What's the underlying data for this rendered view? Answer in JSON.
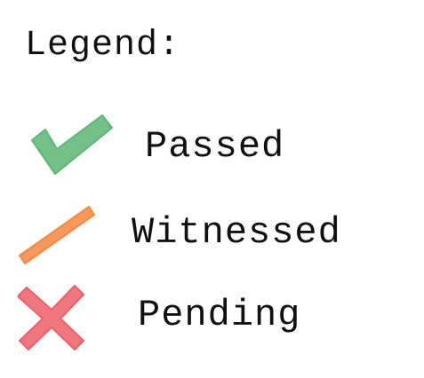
{
  "legend": {
    "title": "Legend:",
    "items": [
      {
        "label": "Passed",
        "icon": "checkmark-icon",
        "color": "#5cb574"
      },
      {
        "label": "Witnessed",
        "icon": "slash-icon",
        "color": "#f5873f"
      },
      {
        "label": "Pending",
        "icon": "cross-icon",
        "color": "#ee5f69"
      }
    ]
  }
}
